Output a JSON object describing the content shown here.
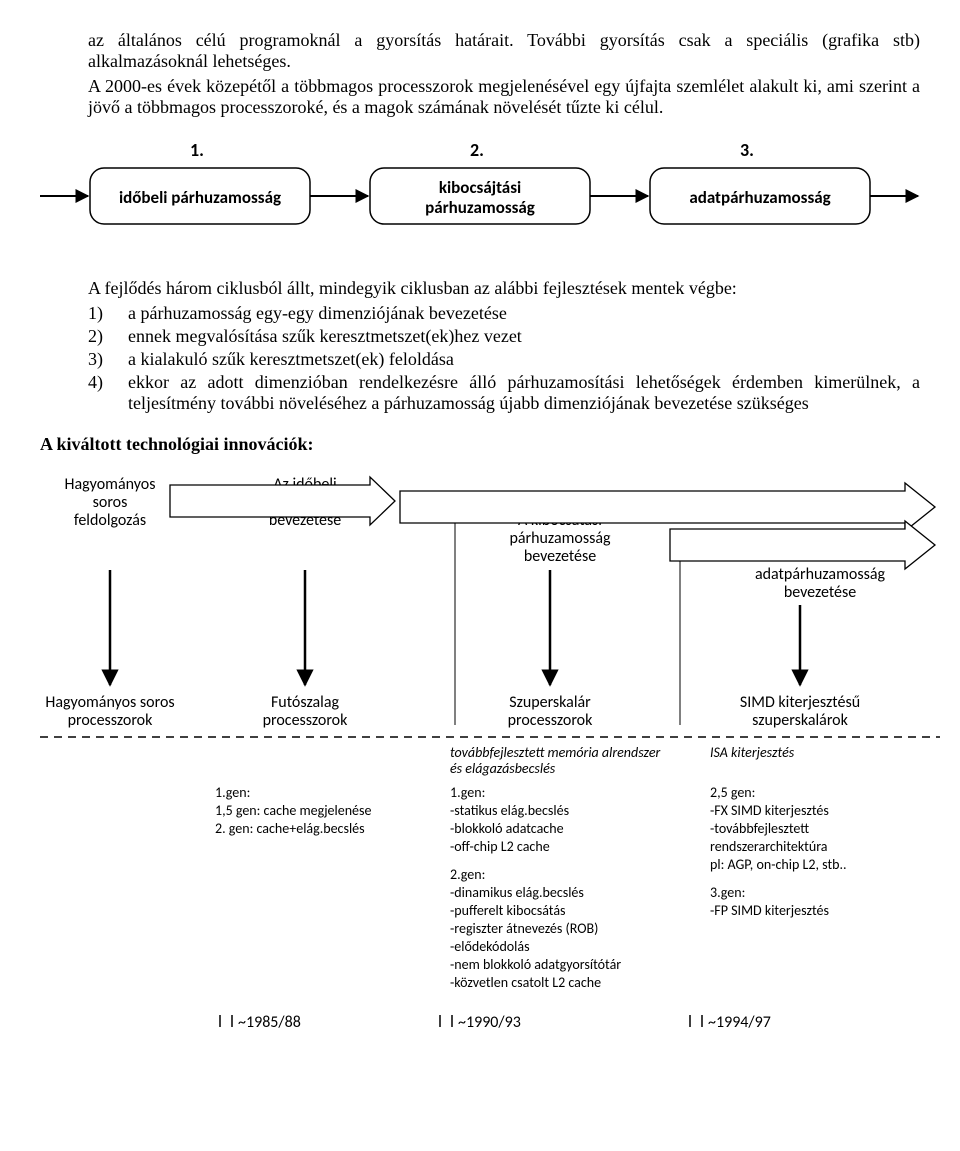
{
  "intro": {
    "p1": "az általános célú programoknál a gyorsítás határait. További gyorsítás csak a speciális (grafika stb) alkalmazásoknál lehetséges.",
    "p2": "A 2000-es évek közepétől a többmagos processzorok megjelenésével egy újfajta szemlélet alakult ki, ami szerint a jövő a többmagos processzoroké, és a magok számának növelését tűzte ki célul."
  },
  "diagram1": {
    "labels": {
      "n1": "1.",
      "n2": "2.",
      "n3": "3."
    },
    "boxes": {
      "b1": "időbeli párhuzamosság",
      "b2_line1": "kibocsájtási",
      "b2_line2": "párhuzamosság",
      "b3": "adatpárhuzamosság"
    },
    "style": {
      "box_stroke": "#000000",
      "box_fill": "#ffffff",
      "arrow_stroke": "#000000",
      "font_size_num": 18,
      "font_size_box": 17,
      "box_rx": 14
    }
  },
  "cycles": {
    "lead": "A fejlődés három ciklusból állt, mindegyik ciklusban az alábbi fejlesztések mentek végbe:",
    "items": [
      {
        "n": "1)",
        "t": "a párhuzamosság egy-egy dimenziójának bevezetése"
      },
      {
        "n": "2)",
        "t": "ennek megvalósítása szűk keresztmetszet(ek)hez vezet"
      },
      {
        "n": "3)",
        "t": "a kialakuló szűk keresztmetszet(ek) feloldása"
      },
      {
        "n": "4)",
        "t": "ekkor az adott dimenzióban rendelkezésre álló párhuzamosítási lehetőségek érdemben kimerülnek, a teljesítmény további növeléséhez a párhuzamosság újabb dimenziójának bevezetése szükséges"
      }
    ]
  },
  "heading_innov": "A kiváltott technológiai innovációk:",
  "diagram2": {
    "top_labels": {
      "c0_l1": "Hagyományos",
      "c0_l2": "soros",
      "c0_l3": "feldolgozás",
      "c1_l1": "Az időbeli",
      "c1_l2": "párhuzamosság",
      "c1_l3": "bevezetése",
      "c2_l1": "A kibocsátási",
      "c2_l2": "párhuzamosság",
      "c2_l3": "bevezetése",
      "c3_l1": "Az",
      "c3_l2": "adatpárhuzamosság",
      "c3_l3": "bevezetése"
    },
    "mid_labels": {
      "c0_l1": "Hagyományos soros",
      "c0_l2": "processzorok",
      "c1_l1": "Futószalag",
      "c1_l2": "processzorok",
      "c2_l1": "Szuperskalár",
      "c2_l2": "processzorok",
      "c3_l1": "SIMD kiterjesztésű",
      "c3_l2": "szuperskalárok"
    },
    "sub_italic": {
      "c2_l1": "továbbfejlesztett memória alrendszer",
      "c2_l2": "és elágazásbecslés",
      "c3_l1": "ISA kiterjesztés"
    },
    "gens": {
      "c1": [
        "1.gen:",
        "1,5 gen: cache megjelenése",
        "2. gen: cache+elág.becslés"
      ],
      "c2": [
        "1.gen:",
        "-statikus elág.becslés",
        "-blokkoló adatcache",
        "-off-chip L2 cache",
        "",
        "2.gen:",
        "-dinamikus elág.becslés",
        "-pufferelt kibocsátás",
        "-regiszter átnevezés (ROB)",
        "-elődekódolás",
        "-nem blokkoló adatgyorsítótár",
        "-közvetlen csatolt L2 cache"
      ],
      "c3": [
        "2,5 gen:",
        "-FX SIMD kiterjesztés",
        "-továbbfejlesztett",
        "  rendszerarchitektúra",
        "  pl: AGP, on-chip L2, stb..",
        "",
        "3.gen:",
        "-FP SIMD kiterjesztés"
      ]
    },
    "years": {
      "y1": "~1985/88",
      "y2": "~1990/93",
      "y3": "~1994/97"
    },
    "style": {
      "stroke": "#000000",
      "font_top": 16,
      "font_mid": 16,
      "font_small": 14,
      "font_year": 16,
      "dash": "8,6"
    }
  }
}
